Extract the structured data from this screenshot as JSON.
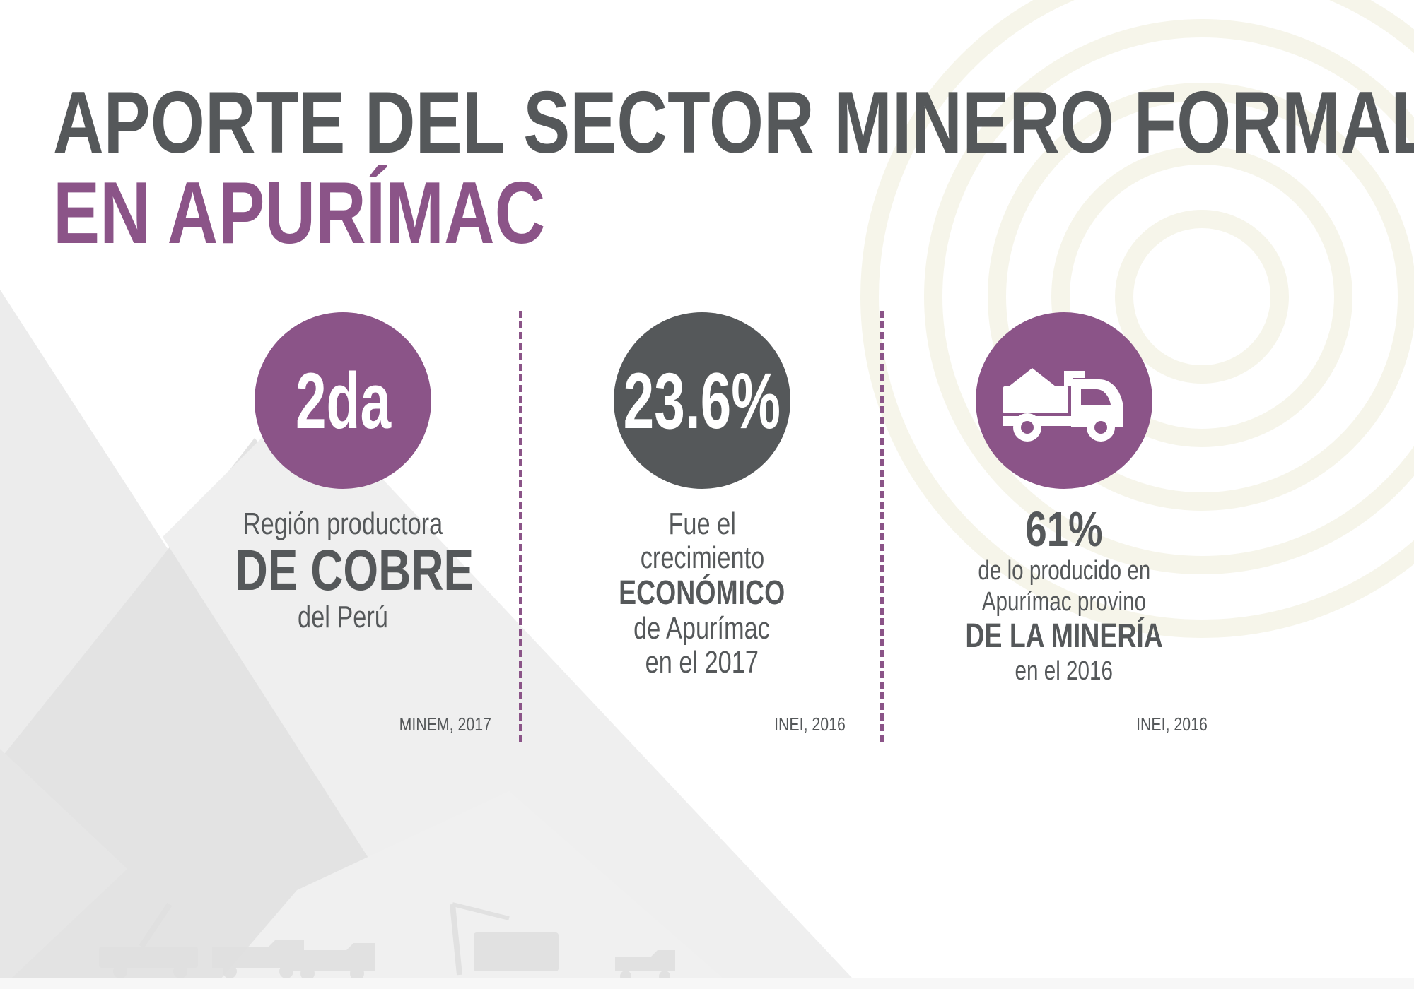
{
  "title": {
    "line1": "APORTE DEL SECTOR MINERO FORMAL",
    "line2": "EN APURÍMAC"
  },
  "colors": {
    "purple": "#8b5488",
    "dark_gray": "#55585a",
    "background_shape": "#e8e8e8"
  },
  "stats": [
    {
      "circle_text": "2da",
      "circle_color": "purple",
      "lines": [
        "Región productora",
        "DE COBRE",
        "del Perú"
      ],
      "source": "MINEM, 2017"
    },
    {
      "circle_text": "23.6%",
      "circle_color": "dark_gray",
      "lines": [
        "Fue el",
        "crecimiento",
        "ECONÓMICO",
        "de Apurímac",
        "en el 2017"
      ],
      "source": "INEI, 2016"
    },
    {
      "circle_icon": "dump-truck-icon",
      "circle_color": "purple",
      "lines": [
        "61%",
        "de lo producido en",
        "Apurímac provino",
        "DE LA MINERÍA",
        "en el 2016"
      ],
      "source": "INEI, 2016"
    }
  ]
}
